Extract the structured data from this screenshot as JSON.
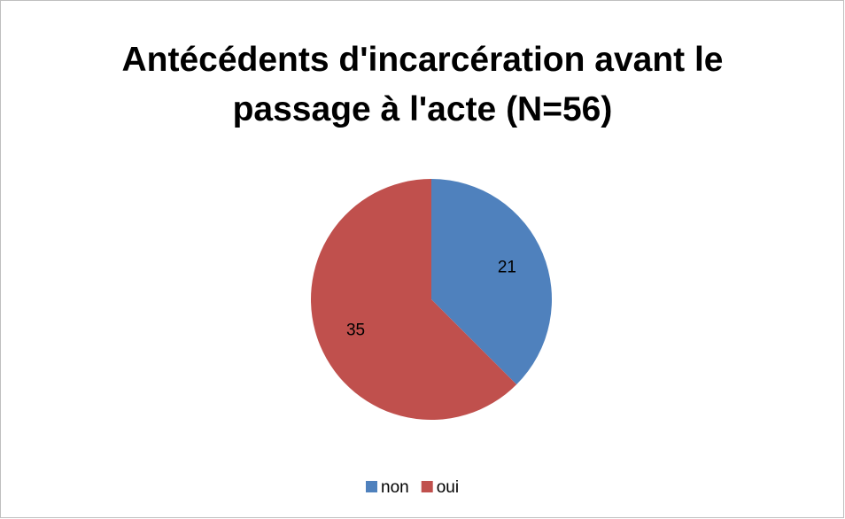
{
  "chart_data": {
    "type": "pie",
    "title": "Antécédents d'incarcération avant le passage à l'acte (N=56)",
    "categories": [
      "non",
      "oui"
    ],
    "values": [
      21,
      35
    ],
    "colors": [
      "#4f81bd",
      "#c0504d"
    ],
    "legend": "bottom"
  }
}
